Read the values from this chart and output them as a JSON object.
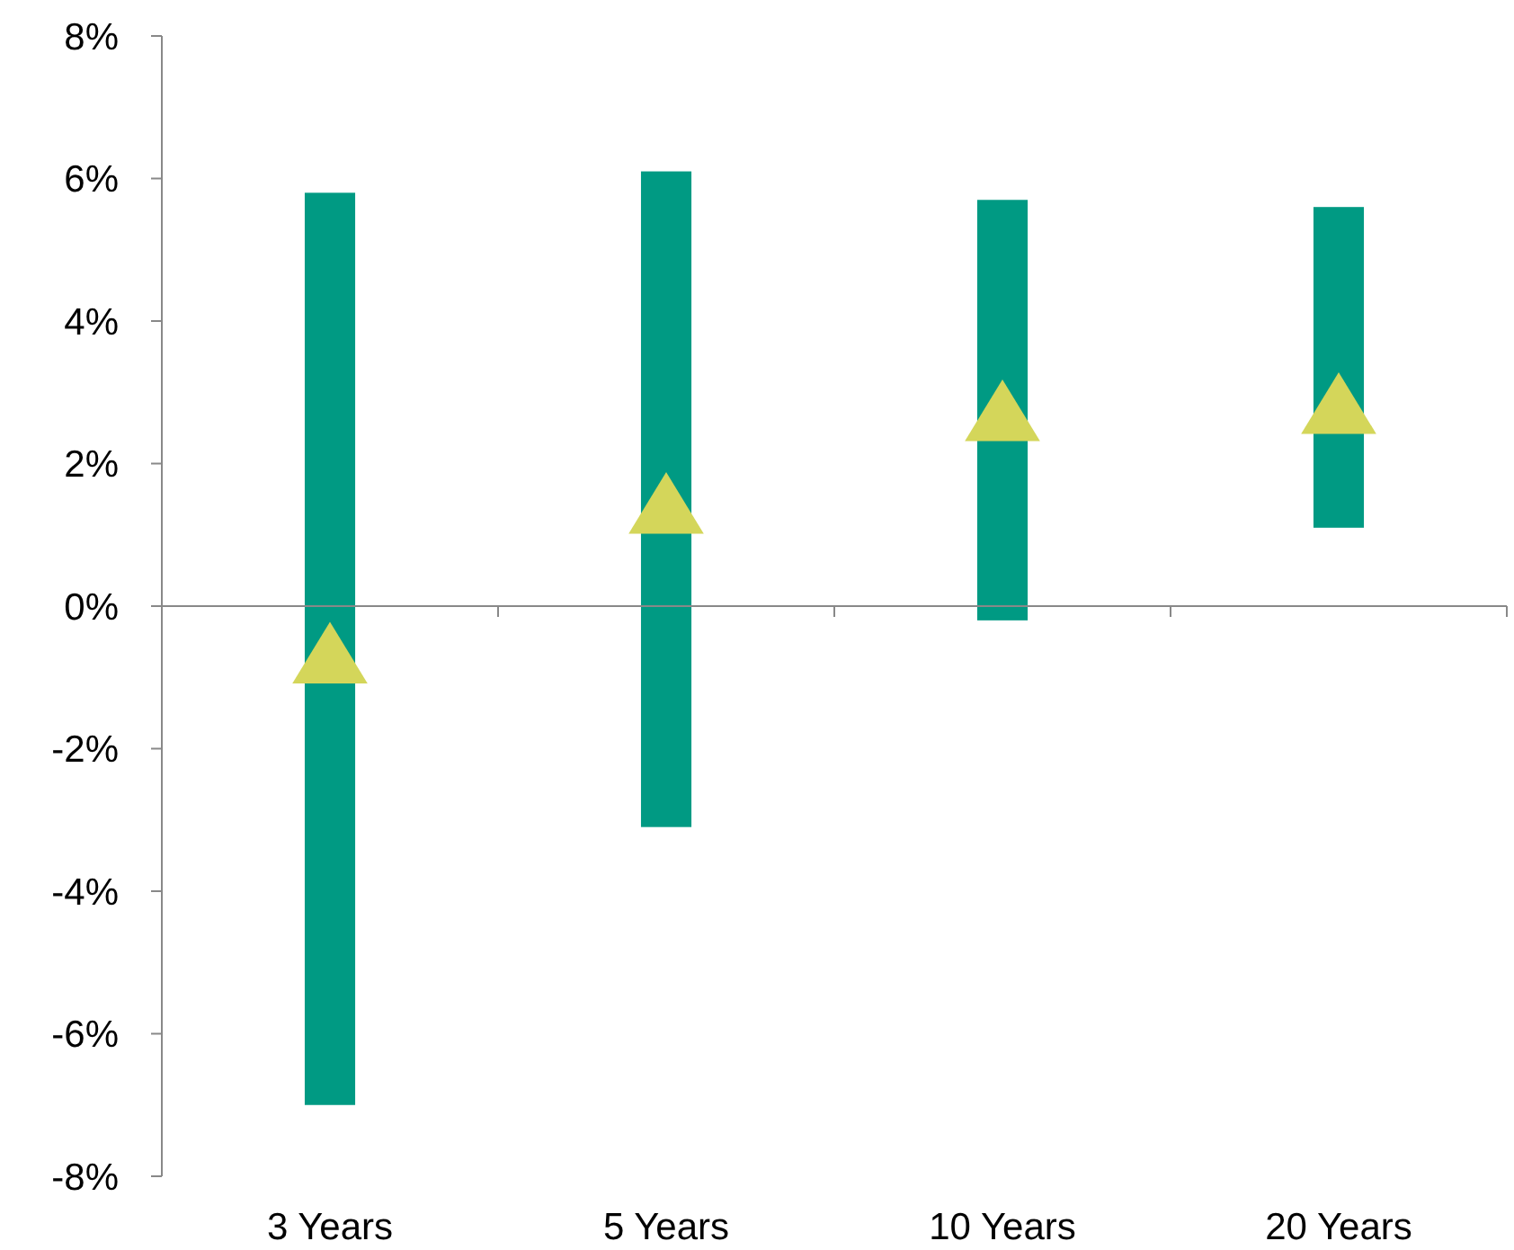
{
  "chart_data": {
    "type": "bar",
    "categories": [
      "3 Years",
      "5 Years",
      "10 Years",
      "20 Years"
    ],
    "series": [
      {
        "color": "#009a83",
        "base": [
          -7.0,
          -3.1,
          -0.2,
          1.1
        ],
        "values": [
          12.8,
          9.2,
          5.9,
          4.5
        ]
      },
      {
        "type": "scatter",
        "color": "#d4d65a",
        "marker": "triangle",
        "x": [
          "3 Years",
          "5 Years",
          "10 Years",
          "20 Years"
        ],
        "values": [
          -0.7,
          1.4,
          2.7,
          2.8
        ]
      }
    ],
    "ylim": [
      -8,
      8
    ],
    "yticks": [
      {
        "value": -8,
        "label": "-8%"
      },
      {
        "value": -6,
        "label": "-6%"
      },
      {
        "value": -4,
        "label": "-4%"
      },
      {
        "value": -2,
        "label": "-2%"
      },
      {
        "value": 0,
        "label": "0%"
      },
      {
        "value": 2,
        "label": "2%"
      },
      {
        "value": 4,
        "label": "4%"
      },
      {
        "value": 6,
        "label": "6%"
      },
      {
        "value": 8,
        "label": "8%"
      }
    ],
    "xlabel": null
  }
}
